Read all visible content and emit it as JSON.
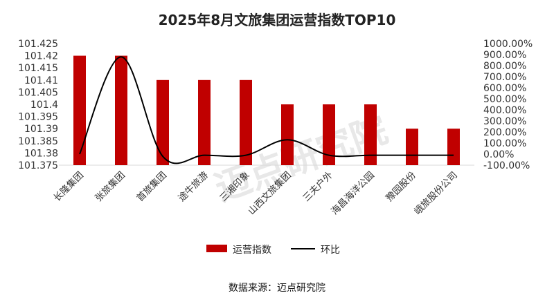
{
  "chart_data": {
    "type": "bar",
    "title": "2025年8月文旅集团运营指数TOP10",
    "categories": [
      "长隆集团",
      "张旅集团",
      "首旅集团",
      "途牛旅游",
      "三湘印象",
      "山西文旅集团",
      "三夫户外",
      "海昌海洋公园",
      "豫园股份",
      "峨旅股份公司"
    ],
    "series": [
      {
        "name": "运营指数",
        "type": "bar",
        "axis": "left",
        "color": "#c00000",
        "values": [
          101.42,
          101.42,
          101.41,
          101.41,
          101.41,
          101.4,
          101.4,
          101.4,
          101.39,
          101.39
        ]
      },
      {
        "name": "环比",
        "type": "line",
        "axis": "right",
        "color": "#000000",
        "values": [
          0,
          880,
          -20,
          -10,
          -10,
          130,
          -10,
          -10,
          -10,
          -10
        ]
      }
    ],
    "ylim_left": [
      101.375,
      101.425
    ],
    "yticks_left": [
      "101.425",
      "101.42",
      "101.415",
      "101.41",
      "101.405",
      "101.4",
      "101.395",
      "101.39",
      "101.385",
      "101.38",
      "101.375"
    ],
    "ylim_right": [
      -100,
      1000
    ],
    "yticks_right": [
      "1000.00%",
      "900.00%",
      "800.00%",
      "700.00%",
      "600.00%",
      "500.00%",
      "400.00%",
      "300.00%",
      "200.00%",
      "100.00%",
      "0.00%",
      "-100.00%"
    ],
    "legend_position": "bottom",
    "source": "数据来源：迈点研究院",
    "watermark": "迈点研究院",
    "grid": false
  }
}
